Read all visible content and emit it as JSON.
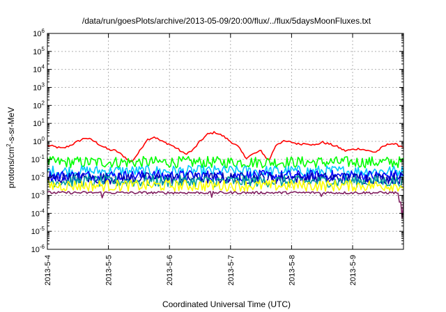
{
  "chart_data": {
    "type": "line",
    "title": "/data/run/goesPlots/archive/2013-05-09/20:00/flux/../flux/5daysMoonFluxes.txt",
    "xlabel": "Coordinated Universal Time (UTC)",
    "ylabel": {
      "pre": "protons/cm",
      "sup": "2",
      "post": "-s-sr-MeV"
    },
    "yscale": "log",
    "ylim": [
      1e-06,
      1000000.0
    ],
    "yticks": [
      {
        "base": "10",
        "exp": "-6"
      },
      {
        "base": "10",
        "exp": "-5"
      },
      {
        "base": "10",
        "exp": "-4"
      },
      {
        "base": "10",
        "exp": "-3"
      },
      {
        "base": "10",
        "exp": "-2"
      },
      {
        "base": "10",
        "exp": "-1"
      },
      {
        "base": "10",
        "exp": "0"
      },
      {
        "base": "10",
        "exp": "1"
      },
      {
        "base": "10",
        "exp": "2"
      },
      {
        "base": "10",
        "exp": "3"
      },
      {
        "base": "10",
        "exp": "4"
      },
      {
        "base": "10",
        "exp": "5"
      },
      {
        "base": "10",
        "exp": "6"
      }
    ],
    "xlim": [
      "2013-05-04",
      "2013-05-09T20:00"
    ],
    "xticks": [
      "2013-5-4",
      "2013-5-5",
      "2013-5-6",
      "2013-5-7",
      "2013-5-8",
      "2013-5-9"
    ],
    "grid": true,
    "series": [
      {
        "color": "#ff0000",
        "x": [
          "2013-05-04T00:00",
          "2013-05-04T03:00",
          "2013-05-04T06:00",
          "2013-05-04T09:00",
          "2013-05-04T12:00",
          "2013-05-04T15:00",
          "2013-05-04T18:00",
          "2013-05-04T21:00",
          "2013-05-05T00:00",
          "2013-05-05T03:00",
          "2013-05-05T06:00",
          "2013-05-05T09:00",
          "2013-05-05T12:00",
          "2013-05-05T15:00",
          "2013-05-05T18:00",
          "2013-05-05T21:00",
          "2013-05-06T00:00",
          "2013-05-06T03:00",
          "2013-05-06T06:00",
          "2013-05-06T09:00",
          "2013-05-06T12:00",
          "2013-05-06T15:00",
          "2013-05-06T18:00",
          "2013-05-06T21:00",
          "2013-05-07T00:00",
          "2013-05-07T03:00",
          "2013-05-07T06:00",
          "2013-05-07T09:00",
          "2013-05-07T12:00",
          "2013-05-07T15:00",
          "2013-05-07T18:00",
          "2013-05-07T21:00",
          "2013-05-08T00:00",
          "2013-05-08T03:00",
          "2013-05-08T06:00",
          "2013-05-08T09:00",
          "2013-05-08T12:00",
          "2013-05-08T15:00",
          "2013-05-08T18:00",
          "2013-05-08T21:00",
          "2013-05-09T00:00",
          "2013-05-09T03:00",
          "2013-05-09T06:00",
          "2013-05-09T09:00",
          "2013-05-09T12:00",
          "2013-05-09T15:00",
          "2013-05-09T18:00",
          "2013-05-09T20:00"
        ],
        "y": [
          0.6,
          0.5,
          0.4,
          0.6,
          1.0,
          1.6,
          1.1,
          0.6,
          0.35,
          0.3,
          0.15,
          0.07,
          0.25,
          1.2,
          1.8,
          1.0,
          0.7,
          0.4,
          0.2,
          0.3,
          1.0,
          2.5,
          3.2,
          2.0,
          1.0,
          0.5,
          0.12,
          0.2,
          0.3,
          0.08,
          0.7,
          1.0,
          0.9,
          0.7,
          0.8,
          0.6,
          0.9,
          0.7,
          0.5,
          0.3,
          0.35,
          0.4,
          0.3,
          0.25,
          0.5,
          0.8,
          0.6,
          0.5
        ]
      },
      {
        "color": "#00ff00",
        "base": 0.07
      },
      {
        "color": "#00c8ff",
        "base": 0.022
      },
      {
        "color": "#0000ff",
        "base": 0.012
      },
      {
        "color": "#0000b0",
        "base": 0.009
      },
      {
        "color": "#00a0a0",
        "base": 0.006
      },
      {
        "color": "#ffff00",
        "base": 0.0035
      },
      {
        "color": "#802060",
        "base": 0.0014
      }
    ]
  }
}
